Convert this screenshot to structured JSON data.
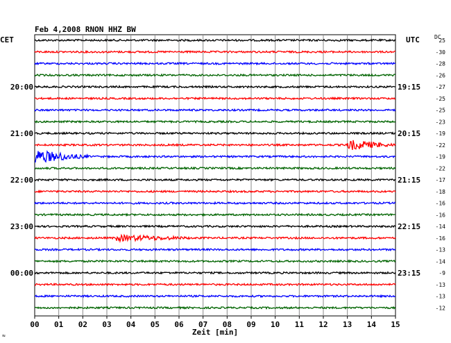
{
  "chart_data": {
    "type": "line",
    "title": "Feb 4,2008   RNON HHZ BW",
    "left_tz_label": "CET",
    "right_tz_label": "UTC",
    "dc_label": "DC",
    "xlabel": "Zeit [min]",
    "xlim": [
      0,
      15
    ],
    "x_ticks": [
      "00",
      "01",
      "02",
      "03",
      "04",
      "05",
      "06",
      "07",
      "08",
      "09",
      "10",
      "11",
      "12",
      "13",
      "14",
      "15"
    ],
    "grid": true,
    "trace_colors": [
      "#000000",
      "#ff0000",
      "#0000ff",
      "#006400"
    ],
    "traces": [
      {
        "dc": "25",
        "left": "",
        "right": ""
      },
      {
        "dc": "-30",
        "left": "",
        "right": ""
      },
      {
        "dc": "-28",
        "left": "",
        "right": ""
      },
      {
        "dc": "-26",
        "left": "",
        "right": ""
      },
      {
        "dc": "-27",
        "left": "20:00",
        "right": "19:15"
      },
      {
        "dc": "-25",
        "left": "",
        "right": ""
      },
      {
        "dc": "-25",
        "left": "",
        "right": ""
      },
      {
        "dc": "-23",
        "left": "",
        "right": ""
      },
      {
        "dc": "-19",
        "left": "21:00",
        "right": "20:15"
      },
      {
        "dc": "-22",
        "left": "",
        "right": ""
      },
      {
        "dc": "-19",
        "left": "",
        "right": ""
      },
      {
        "dc": "-22",
        "left": "",
        "right": ""
      },
      {
        "dc": "-17",
        "left": "22:00",
        "right": "21:15"
      },
      {
        "dc": "-18",
        "left": "",
        "right": ""
      },
      {
        "dc": "-16",
        "left": "",
        "right": ""
      },
      {
        "dc": "-16",
        "left": "",
        "right": ""
      },
      {
        "dc": "-14",
        "left": "23:00",
        "right": "22:15"
      },
      {
        "dc": "-16",
        "left": "",
        "right": ""
      },
      {
        "dc": "-13",
        "left": "",
        "right": ""
      },
      {
        "dc": "-14",
        "left": "",
        "right": ""
      },
      {
        "dc": "-9",
        "left": "00:00",
        "right": "23:15"
      },
      {
        "dc": "-13",
        "left": "",
        "right": ""
      },
      {
        "dc": "-13",
        "left": "",
        "right": ""
      },
      {
        "dc": "-12",
        "left": "",
        "right": ""
      }
    ],
    "events": [
      {
        "trace": 9,
        "start_min": 13.0,
        "end_min": 15.0,
        "amplitude": 8
      },
      {
        "trace": 10,
        "start_min": 0.0,
        "end_min": 2.2,
        "amplitude": 10
      },
      {
        "trace": 17,
        "start_min": 3.4,
        "end_min": 7.2,
        "amplitude": 5
      }
    ]
  },
  "footer_mark": "≈"
}
